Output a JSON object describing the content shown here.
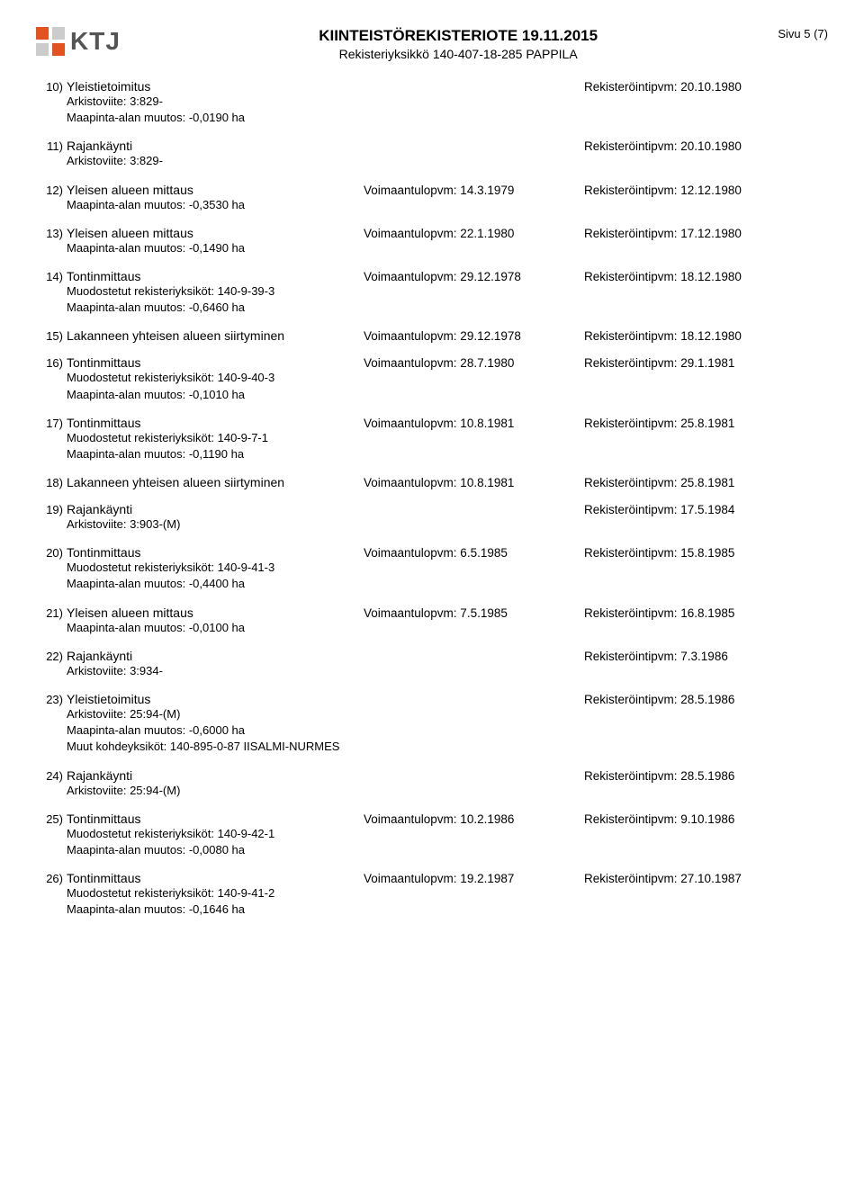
{
  "header": {
    "logo_text": "KTJ",
    "title": "KIINTEISTÖREKISTERIOTE 19.11.2015",
    "subtitle": "Rekisteriyksikkö 140-407-18-285 PAPPILA",
    "page": "Sivu 5 (7)"
  },
  "labels": {
    "voimaantulopvm": "Voimaantulopvm:",
    "rekisterointipvm": "Rekisteröintipvm:",
    "arkistoviite": "Arkistoviite:",
    "maapinta": "Maapinta-alan muutos:",
    "muodostetut": "Muodostetut rekisteriyksiköt:",
    "muut_kohde": "Muut kohdeyksiköt:"
  },
  "entries": [
    {
      "n": "10)",
      "title": "Yleistietoimitus",
      "voimaan": "",
      "rek": "20.10.1980",
      "details": [
        {
          "type": "arkisto",
          "value": "3:829-"
        },
        {
          "type": "maapinta",
          "value": "-0,0190 ha"
        }
      ]
    },
    {
      "n": "11)",
      "title": "Rajankäynti",
      "voimaan": "",
      "rek": "20.10.1980",
      "details": [
        {
          "type": "arkisto",
          "value": "3:829-"
        }
      ]
    },
    {
      "n": "12)",
      "title": "Yleisen alueen mittaus",
      "voimaan": "14.3.1979",
      "rek": "12.12.1980",
      "details": [
        {
          "type": "maapinta",
          "value": "-0,3530 ha"
        }
      ]
    },
    {
      "n": "13)",
      "title": "Yleisen alueen mittaus",
      "voimaan": "22.1.1980",
      "rek": "17.12.1980",
      "details": [
        {
          "type": "maapinta",
          "value": "-0,1490 ha"
        }
      ]
    },
    {
      "n": "14)",
      "title": "Tontinmittaus",
      "voimaan": "29.12.1978",
      "rek": "18.12.1980",
      "details": [
        {
          "type": "muodostetut",
          "value": "140-9-39-3"
        },
        {
          "type": "maapinta",
          "value": "-0,6460 ha"
        }
      ]
    },
    {
      "n": "15)",
      "title": "Lakanneen yhteisen alueen siirtyminen",
      "voimaan": "29.12.1978",
      "rek": "18.12.1980",
      "details": []
    },
    {
      "n": "16)",
      "title": "Tontinmittaus",
      "voimaan": "28.7.1980",
      "rek": "29.1.1981",
      "details": [
        {
          "type": "muodostetut",
          "value": "140-9-40-3"
        },
        {
          "type": "maapinta",
          "value": "-0,1010 ha"
        }
      ]
    },
    {
      "n": "17)",
      "title": "Tontinmittaus",
      "voimaan": "10.8.1981",
      "rek": "25.8.1981",
      "details": [
        {
          "type": "muodostetut",
          "value": "140-9-7-1"
        },
        {
          "type": "maapinta",
          "value": "-0,1190 ha"
        }
      ]
    },
    {
      "n": "18)",
      "title": "Lakanneen yhteisen alueen siirtyminen",
      "voimaan": "10.8.1981",
      "rek": "25.8.1981",
      "details": []
    },
    {
      "n": "19)",
      "title": "Rajankäynti",
      "voimaan": "",
      "rek": "17.5.1984",
      "details": [
        {
          "type": "arkisto",
          "value": "3:903-(M)"
        }
      ]
    },
    {
      "n": "20)",
      "title": "Tontinmittaus",
      "voimaan": "6.5.1985",
      "rek": "15.8.1985",
      "details": [
        {
          "type": "muodostetut",
          "value": "140-9-41-3"
        },
        {
          "type": "maapinta",
          "value": "-0,4400 ha"
        }
      ]
    },
    {
      "n": "21)",
      "title": "Yleisen alueen mittaus",
      "voimaan": "7.5.1985",
      "rek": "16.8.1985",
      "details": [
        {
          "type": "maapinta",
          "value": "-0,0100 ha"
        }
      ]
    },
    {
      "n": "22)",
      "title": "Rajankäynti",
      "voimaan": "",
      "rek": "7.3.1986",
      "details": [
        {
          "type": "arkisto",
          "value": "3:934-"
        }
      ]
    },
    {
      "n": "23)",
      "title": "Yleistietoimitus",
      "voimaan": "",
      "rek": "28.5.1986",
      "details": [
        {
          "type": "arkisto",
          "value": "25:94-(M)"
        },
        {
          "type": "maapinta",
          "value": "-0,6000 ha"
        },
        {
          "type": "muut_kohde",
          "value": "140-895-0-87 IISALMI-NURMES"
        }
      ]
    },
    {
      "n": "24)",
      "title": "Rajankäynti",
      "voimaan": "",
      "rek": "28.5.1986",
      "details": [
        {
          "type": "arkisto",
          "value": "25:94-(M)"
        }
      ]
    },
    {
      "n": "25)",
      "title": "Tontinmittaus",
      "voimaan": "10.2.1986",
      "rek": "9.10.1986",
      "details": [
        {
          "type": "muodostetut",
          "value": "140-9-42-1"
        },
        {
          "type": "maapinta",
          "value": "-0,0080 ha"
        }
      ]
    },
    {
      "n": "26)",
      "title": "Tontinmittaus",
      "voimaan": "19.2.1987",
      "rek": "27.10.1987",
      "details": [
        {
          "type": "muodostetut",
          "value": "140-9-41-2"
        },
        {
          "type": "maapinta",
          "value": "-0,1646 ha"
        }
      ]
    }
  ]
}
